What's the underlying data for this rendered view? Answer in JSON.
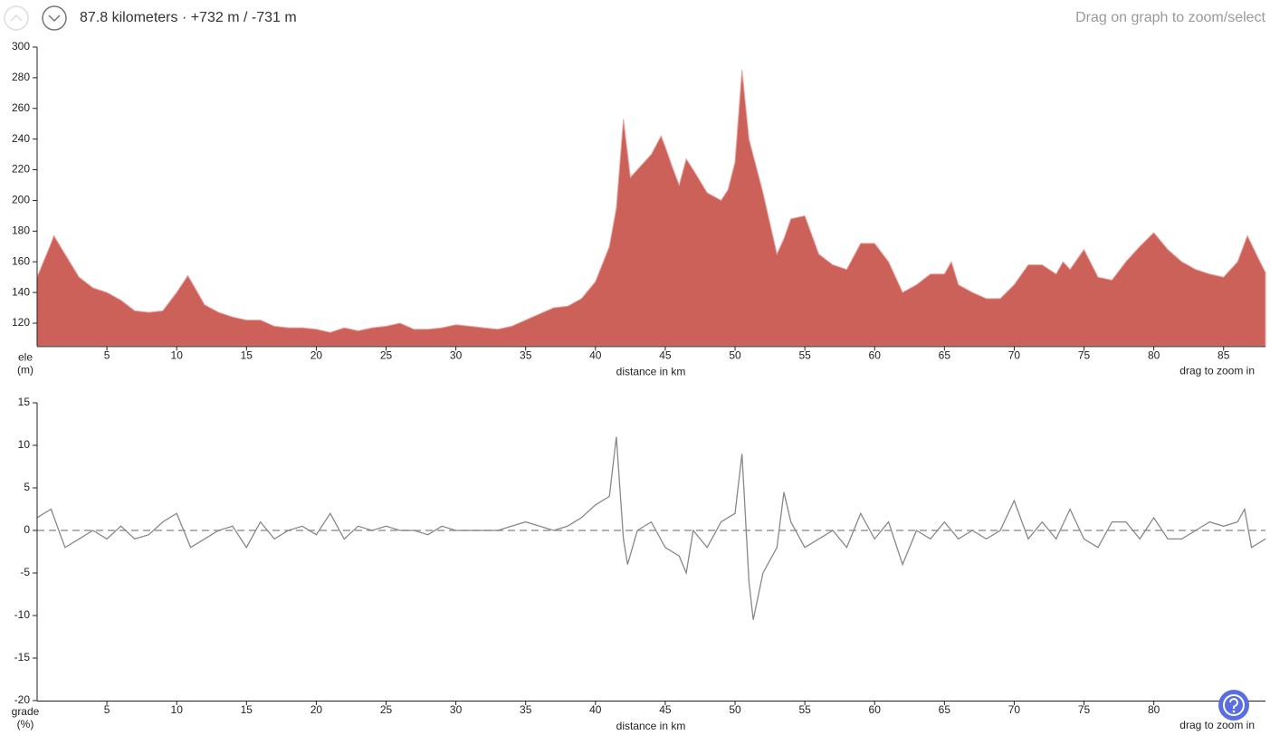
{
  "header": {
    "summary": "87.8 kilometers · +732 m / -731 m",
    "hint": "Drag on graph to zoom/select"
  },
  "chart_data": [
    {
      "type": "area",
      "color": "#cb6158",
      "ylabel": [
        "ele",
        "(m)"
      ],
      "xlabel": "distance in km",
      "zoom_hint": "drag to zoom in",
      "xlim": [
        0,
        88
      ],
      "ylim": [
        105,
        300
      ],
      "xticks": [
        5,
        10,
        15,
        20,
        25,
        30,
        35,
        40,
        45,
        50,
        55,
        60,
        65,
        70,
        75,
        80,
        85
      ],
      "yticks": [
        120,
        140,
        160,
        180,
        200,
        220,
        240,
        260,
        280,
        300
      ],
      "x": [
        0,
        1,
        1.2,
        2,
        3,
        4,
        5,
        6,
        7,
        8,
        9,
        10,
        10.8,
        11.5,
        12,
        13,
        14,
        15,
        16,
        17,
        18,
        19,
        20,
        21,
        22,
        23,
        24,
        25,
        26,
        27,
        28,
        29,
        30,
        31,
        32,
        33,
        34,
        35,
        36,
        37,
        38,
        39,
        40,
        41,
        41.5,
        42,
        42.5,
        43,
        44,
        44.7,
        45,
        45.5,
        46,
        46.5,
        47,
        48,
        49,
        49.5,
        50,
        50.5,
        51,
        52,
        53,
        53.5,
        54,
        55,
        56,
        57,
        58,
        59,
        60,
        61,
        62,
        63,
        64,
        65,
        65.5,
        66,
        67,
        68,
        69,
        70,
        71,
        72,
        73,
        73.5,
        74,
        75,
        76,
        77,
        78,
        79,
        80,
        81,
        82,
        83,
        84,
        85,
        86,
        86.7,
        87.5,
        88
      ],
      "values": [
        150,
        172,
        177,
        165,
        150,
        143,
        140,
        135,
        128,
        127,
        128,
        140,
        151,
        140,
        132,
        127,
        124,
        122,
        122,
        118,
        117,
        117,
        116,
        114,
        117,
        115,
        117,
        118,
        120,
        116,
        116,
        117,
        119,
        118,
        117,
        116,
        118,
        122,
        126,
        130,
        131,
        136,
        147,
        170,
        195,
        253,
        215,
        220,
        230,
        242,
        235,
        222,
        210,
        227,
        220,
        205,
        200,
        207,
        225,
        285,
        240,
        205,
        165,
        175,
        188,
        190,
        165,
        158,
        155,
        172,
        172,
        160,
        140,
        145,
        152,
        152,
        160,
        145,
        140,
        136,
        136,
        145,
        158,
        158,
        152,
        160,
        155,
        168,
        150,
        148,
        160,
        170,
        179,
        168,
        160,
        155,
        152,
        150,
        160,
        177,
        162,
        153
      ]
    },
    {
      "type": "line",
      "color": "#888888",
      "zero_line": true,
      "ylabel": [
        "grade",
        "(%)"
      ],
      "xlabel": "distance in km",
      "zoom_hint": "drag to zoom in",
      "xlim": [
        0,
        88
      ],
      "ylim": [
        -20,
        15
      ],
      "xticks": [
        5,
        10,
        15,
        20,
        25,
        30,
        35,
        40,
        45,
        50,
        55,
        60,
        65,
        70,
        75,
        80
      ],
      "yticks": [
        -20,
        -15,
        -10,
        -5,
        0,
        5,
        10,
        15
      ],
      "x": [
        0,
        1,
        2,
        3,
        4,
        5,
        6,
        7,
        8,
        9,
        10,
        11,
        12,
        13,
        14,
        15,
        16,
        17,
        18,
        19,
        20,
        21,
        22,
        23,
        24,
        25,
        26,
        27,
        28,
        29,
        30,
        31,
        32,
        33,
        34,
        35,
        36,
        37,
        38,
        39,
        40,
        41,
        41.5,
        42,
        42.3,
        43,
        44,
        45,
        46,
        46.5,
        47,
        48,
        49,
        50,
        50.5,
        51,
        51.3,
        52,
        53,
        53.5,
        54,
        55,
        56,
        57,
        58,
        59,
        60,
        61,
        62,
        63,
        64,
        65,
        66,
        67,
        68,
        69,
        70,
        71,
        72,
        73,
        74,
        75,
        76,
        77,
        78,
        79,
        80,
        81,
        82,
        83,
        84,
        85,
        86,
        86.5,
        87,
        88
      ],
      "values": [
        1.5,
        2.5,
        -2,
        -1,
        0,
        -1,
        0.5,
        -1,
        -0.5,
        1,
        2,
        -2,
        -1,
        0,
        0.5,
        -2,
        1,
        -1,
        0,
        0.5,
        -0.5,
        2,
        -1,
        0.5,
        0,
        0.5,
        0,
        0,
        -0.5,
        0.5,
        0,
        0,
        0,
        0,
        0.5,
        1,
        0.5,
        0,
        0.5,
        1.5,
        3,
        4,
        11,
        -1,
        -4,
        0,
        1,
        -2,
        -3,
        -5,
        0,
        -2,
        1,
        2,
        9,
        -6,
        -10.5,
        -5,
        -2,
        4.5,
        1,
        -2,
        -1,
        0,
        -2,
        2,
        -1,
        1,
        -4,
        0,
        -1,
        1,
        -1,
        0,
        -1,
        0,
        3.5,
        -1,
        1,
        -1,
        2.5,
        -1,
        -2,
        1,
        1,
        -1,
        1.5,
        -1,
        -1,
        0,
        1,
        0.5,
        1,
        2.5,
        -2,
        -1
      ]
    }
  ]
}
